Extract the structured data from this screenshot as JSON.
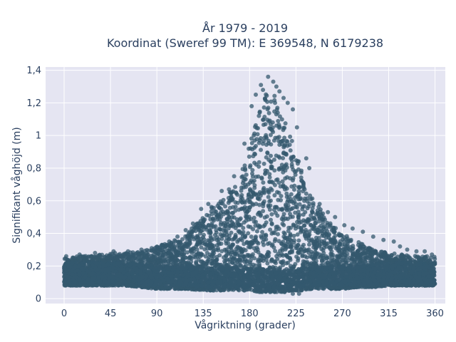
{
  "chart_data": {
    "type": "scatter",
    "title_line1": "År 1979 - 2019",
    "title_line2": "Koordinat (Sweref 99 TM): E 369548, N 6179238",
    "xlabel": "Vågriktning (grader)",
    "ylabel": "Signifikant våghöjd (m)",
    "xlim": [
      -18,
      370
    ],
    "ylim": [
      -0.03,
      1.42
    ],
    "grid": true,
    "xticks": [
      0,
      45,
      90,
      135,
      180,
      225,
      270,
      315,
      360
    ],
    "xtick_labels": [
      "0",
      "45",
      "90",
      "135",
      "180",
      "225",
      "270",
      "315",
      "360"
    ],
    "yticks": [
      0,
      0.2,
      0.4,
      0.6,
      0.8,
      1.0,
      1.2,
      1.4
    ],
    "ytick_labels": [
      "0",
      "0,2",
      "0,4",
      "0,6",
      "0,8",
      "1",
      "1,2",
      "1,4"
    ],
    "marker_color": "#34586e",
    "envelope": {
      "x": [
        0,
        15,
        30,
        45,
        60,
        75,
        90,
        105,
        120,
        135,
        150,
        160,
        170,
        180,
        190,
        195,
        200,
        205,
        210,
        220,
        225,
        230,
        240,
        250,
        260,
        270,
        285,
        300,
        315,
        330,
        345,
        360
      ],
      "upper": [
        0.25,
        0.26,
        0.27,
        0.28,
        0.28,
        0.29,
        0.32,
        0.35,
        0.4,
        0.52,
        0.6,
        0.65,
        0.72,
        0.95,
        1.15,
        1.25,
        1.28,
        1.25,
        1.15,
        1.0,
        0.9,
        0.8,
        0.62,
        0.55,
        0.45,
        0.4,
        0.35,
        0.3,
        0.28,
        0.27,
        0.26,
        0.26
      ],
      "lower": [
        0.08,
        0.08,
        0.08,
        0.08,
        0.08,
        0.07,
        0.06,
        0.06,
        0.06,
        0.05,
        0.05,
        0.05,
        0.05,
        0.05,
        0.04,
        0.04,
        0.04,
        0.04,
        0.04,
        0.05,
        0.05,
        0.05,
        0.06,
        0.06,
        0.06,
        0.06,
        0.07,
        0.07,
        0.08,
        0.08,
        0.08,
        0.08
      ]
    },
    "outliers": [
      {
        "x": 198,
        "y": 1.36
      },
      {
        "x": 203,
        "y": 1.33
      },
      {
        "x": 206,
        "y": 1.3
      },
      {
        "x": 191,
        "y": 1.31
      },
      {
        "x": 193,
        "y": 1.28
      },
      {
        "x": 209,
        "y": 1.27
      },
      {
        "x": 186,
        "y": 1.25
      },
      {
        "x": 213,
        "y": 1.23
      },
      {
        "x": 217,
        "y": 1.2
      },
      {
        "x": 222,
        "y": 1.16
      },
      {
        "x": 182,
        "y": 1.18
      },
      {
        "x": 226,
        "y": 1.05
      },
      {
        "x": 235,
        "y": 0.86
      },
      {
        "x": 238,
        "y": 0.8
      },
      {
        "x": 175,
        "y": 0.95
      },
      {
        "x": 165,
        "y": 0.75
      },
      {
        "x": 160,
        "y": 0.67
      },
      {
        "x": 153,
        "y": 0.66
      },
      {
        "x": 140,
        "y": 0.58
      },
      {
        "x": 133,
        "y": 0.55
      },
      {
        "x": 125,
        "y": 0.46
      },
      {
        "x": 118,
        "y": 0.42
      },
      {
        "x": 110,
        "y": 0.38
      },
      {
        "x": 102,
        "y": 0.35
      },
      {
        "x": 95,
        "y": 0.33
      },
      {
        "x": 85,
        "y": 0.31
      },
      {
        "x": 75,
        "y": 0.3
      },
      {
        "x": 62,
        "y": 0.29
      },
      {
        "x": 48,
        "y": 0.29
      },
      {
        "x": 30,
        "y": 0.28
      },
      {
        "x": 15,
        "y": 0.27
      },
      {
        "x": 2,
        "y": 0.26
      },
      {
        "x": 248,
        "y": 0.58
      },
      {
        "x": 256,
        "y": 0.53
      },
      {
        "x": 263,
        "y": 0.5
      },
      {
        "x": 272,
        "y": 0.45
      },
      {
        "x": 280,
        "y": 0.43
      },
      {
        "x": 290,
        "y": 0.41
      },
      {
        "x": 300,
        "y": 0.38
      },
      {
        "x": 310,
        "y": 0.36
      },
      {
        "x": 320,
        "y": 0.35
      },
      {
        "x": 326,
        "y": 0.32
      },
      {
        "x": 333,
        "y": 0.3
      },
      {
        "x": 342,
        "y": 0.29
      },
      {
        "x": 350,
        "y": 0.29
      },
      {
        "x": 357,
        "y": 0.27
      },
      {
        "x": 228,
        "y": 0.03
      },
      {
        "x": 222,
        "y": 0.03
      },
      {
        "x": 214,
        "y": 0.04
      },
      {
        "x": 200,
        "y": 0.04
      }
    ]
  }
}
